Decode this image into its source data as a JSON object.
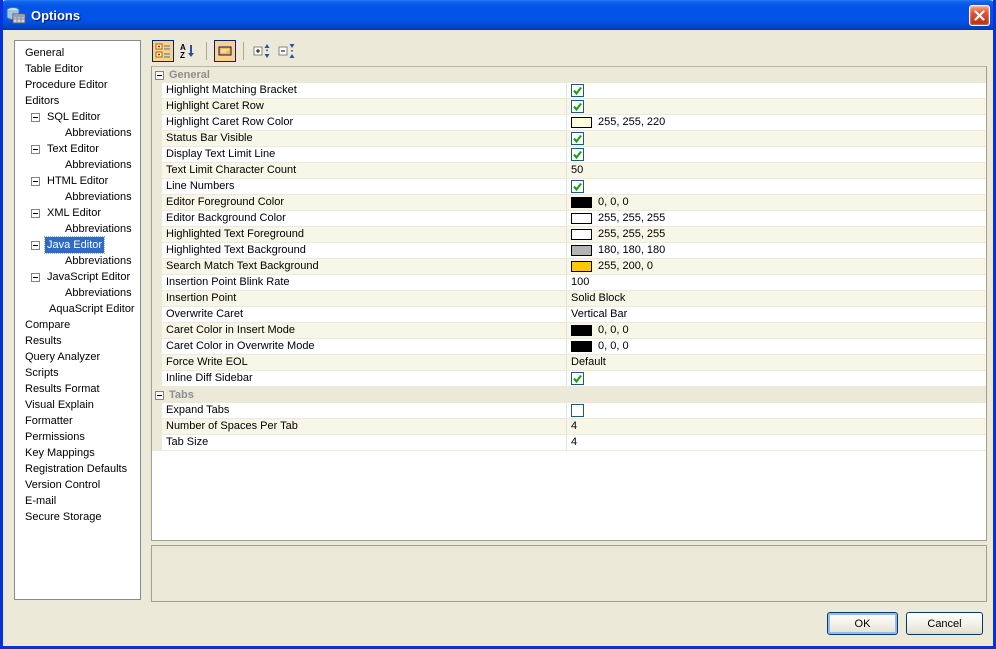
{
  "window": {
    "title": "Options"
  },
  "sidebar": {
    "items": [
      {
        "label": "General",
        "indent": 0,
        "box": false,
        "selected": false
      },
      {
        "label": "Table Editor",
        "indent": 0,
        "box": false,
        "selected": false
      },
      {
        "label": "Procedure Editor",
        "indent": 0,
        "box": false,
        "selected": false
      },
      {
        "label": "Editors",
        "indent": 0,
        "box": false,
        "selected": false
      },
      {
        "label": "SQL Editor",
        "indent": 1,
        "box": true,
        "selected": false
      },
      {
        "label": "Abbreviations",
        "indent": 2,
        "box": false,
        "selected": false
      },
      {
        "label": "Text Editor",
        "indent": 1,
        "box": true,
        "selected": false
      },
      {
        "label": "Abbreviations",
        "indent": 2,
        "box": false,
        "selected": false
      },
      {
        "label": "HTML Editor",
        "indent": 1,
        "box": true,
        "selected": false
      },
      {
        "label": "Abbreviations",
        "indent": 2,
        "box": false,
        "selected": false
      },
      {
        "label": "XML Editor",
        "indent": 1,
        "box": true,
        "selected": false
      },
      {
        "label": "Abbreviations",
        "indent": 2,
        "box": false,
        "selected": false
      },
      {
        "label": "Java Editor",
        "indent": 1,
        "box": true,
        "selected": true
      },
      {
        "label": "Abbreviations",
        "indent": 2,
        "box": false,
        "selected": false
      },
      {
        "label": "JavaScript Editor",
        "indent": 1,
        "box": true,
        "selected": false
      },
      {
        "label": "Abbreviations",
        "indent": 2,
        "box": false,
        "selected": false
      },
      {
        "label": "AquaScript Editor",
        "indent": 1,
        "box": false,
        "selected": false
      },
      {
        "label": "Compare",
        "indent": 0,
        "box": false,
        "selected": false
      },
      {
        "label": "Results",
        "indent": 0,
        "box": false,
        "selected": false
      },
      {
        "label": "Query Analyzer",
        "indent": 0,
        "box": false,
        "selected": false
      },
      {
        "label": "Scripts",
        "indent": 0,
        "box": false,
        "selected": false
      },
      {
        "label": "Results Format",
        "indent": 0,
        "box": false,
        "selected": false
      },
      {
        "label": "Visual Explain",
        "indent": 0,
        "box": false,
        "selected": false
      },
      {
        "label": "Formatter",
        "indent": 0,
        "box": false,
        "selected": false
      },
      {
        "label": "Permissions",
        "indent": 0,
        "box": false,
        "selected": false
      },
      {
        "label": "Key Mappings",
        "indent": 0,
        "box": false,
        "selected": false
      },
      {
        "label": "Registration Defaults",
        "indent": 0,
        "box": false,
        "selected": false
      },
      {
        "label": "Version Control",
        "indent": 0,
        "box": false,
        "selected": false
      },
      {
        "label": "E-mail",
        "indent": 0,
        "box": false,
        "selected": false
      },
      {
        "label": "Secure Storage",
        "indent": 0,
        "box": false,
        "selected": false
      }
    ]
  },
  "toolbar": {
    "buttons": [
      {
        "name": "categorized-view",
        "toggled": true
      },
      {
        "name": "sort-az",
        "toggled": false
      },
      {
        "name": "separator"
      },
      {
        "name": "description-pane",
        "toggled": true
      },
      {
        "name": "separator"
      },
      {
        "name": "expand-all",
        "toggled": false
      },
      {
        "name": "collapse-all",
        "toggled": false
      }
    ]
  },
  "groups": [
    {
      "label": "General",
      "rows": [
        {
          "label": "Highlight Matching Bracket",
          "type": "check",
          "checked": true
        },
        {
          "label": "Highlight Caret Row",
          "type": "check",
          "checked": true
        },
        {
          "label": "Highlight Caret Row Color",
          "type": "color",
          "swatch": "#ffffdc",
          "value": "255, 255, 220"
        },
        {
          "label": "Status Bar Visible",
          "type": "check",
          "checked": true
        },
        {
          "label": "Display Text Limit Line",
          "type": "check",
          "checked": true
        },
        {
          "label": "Text Limit Character Count",
          "type": "text",
          "value": "50"
        },
        {
          "label": "Line Numbers",
          "type": "check",
          "checked": true
        },
        {
          "label": "Editor Foreground Color",
          "type": "color",
          "swatch": "#000000",
          "value": "0, 0, 0"
        },
        {
          "label": "Editor Background Color",
          "type": "color",
          "swatch": "#ffffff",
          "value": "255, 255, 255"
        },
        {
          "label": "Highlighted Text Foreground",
          "type": "color",
          "swatch": "#ffffff",
          "value": "255, 255, 255"
        },
        {
          "label": "Highlighted Text Background",
          "type": "color",
          "swatch": "#b4b4b4",
          "value": "180, 180, 180"
        },
        {
          "label": "Search Match Text Background",
          "type": "color",
          "swatch": "#ffc800",
          "value": "255, 200, 0"
        },
        {
          "label": "Insertion Point Blink Rate",
          "type": "text",
          "value": "100"
        },
        {
          "label": "Insertion Point",
          "type": "text",
          "value": "Solid Block"
        },
        {
          "label": "Overwrite Caret",
          "type": "text",
          "value": "Vertical Bar"
        },
        {
          "label": "Caret Color in Insert Mode",
          "type": "color",
          "swatch": "#000000",
          "value": "0, 0, 0"
        },
        {
          "label": "Caret Color in Overwrite Mode",
          "type": "color",
          "swatch": "#000000",
          "value": "0, 0, 0"
        },
        {
          "label": "Force Write EOL",
          "type": "text",
          "value": "Default"
        },
        {
          "label": "Inline Diff Sidebar",
          "type": "check",
          "checked": true
        }
      ]
    },
    {
      "label": "Tabs",
      "rows": [
        {
          "label": "Expand Tabs",
          "type": "check",
          "checked": false
        },
        {
          "label": "Number of Spaces Per Tab",
          "type": "text",
          "value": "4"
        },
        {
          "label": "Tab Size",
          "type": "text",
          "value": "4"
        }
      ]
    }
  ],
  "footer": {
    "ok_label": "OK",
    "cancel_label": "Cancel"
  },
  "colors": {
    "selection": "#316ac5",
    "titlebar": "#0353e8",
    "frame": "#0832d9",
    "dialog_bg": "#ece9d8",
    "alt_row": "#f7f6e7",
    "check_green": "#1fa31f",
    "toggle_orange": "#fcd189"
  }
}
